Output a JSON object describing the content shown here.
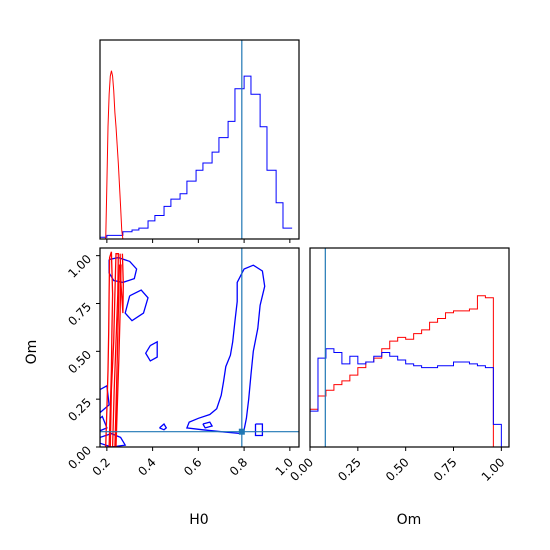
{
  "colors": {
    "blue": "#0000ff",
    "red": "#ff0000",
    "truth": "#1f77b4",
    "frame": "#000000"
  },
  "chart_data": {
    "type": "corner",
    "parameters": [
      "H0",
      "Om"
    ],
    "truths": {
      "H0": 0.79,
      "Om": 0.08
    },
    "axes": {
      "H0": {
        "range": [
          0.17,
          1.04
        ],
        "ticks": [
          0.2,
          0.4,
          0.6,
          0.8,
          1.0
        ],
        "tick_labels": [
          "0.2",
          "0.4",
          "0.6",
          "0.8",
          "1.0"
        ],
        "label": "H0"
      },
      "Om": {
        "range": [
          0.0,
          1.04
        ],
        "ticks": [
          0.0,
          0.25,
          0.5,
          0.75,
          1.0
        ],
        "tick_labels": [
          "0.00",
          "0.25",
          "0.50",
          "0.75",
          "1.00"
        ],
        "label": "Om"
      }
    },
    "hist_H0": {
      "blue": {
        "bins": [
          0.17,
          0.2,
          0.24,
          0.27,
          0.31,
          0.34,
          0.38,
          0.41,
          0.45,
          0.48,
          0.52,
          0.55,
          0.59,
          0.62,
          0.66,
          0.69,
          0.73,
          0.76,
          0.8,
          0.83,
          0.87,
          0.9,
          0.94,
          0.97,
          1.01
        ],
        "counts": [
          0.01,
          0.02,
          0.02,
          0.04,
          0.05,
          0.06,
          0.1,
          0.13,
          0.18,
          0.22,
          0.25,
          0.32,
          0.38,
          0.42,
          0.48,
          0.56,
          0.65,
          0.83,
          0.9,
          0.8,
          0.62,
          0.38,
          0.2,
          0.06
        ]
      },
      "red": {
        "x": [
          0.195,
          0.2,
          0.205,
          0.21,
          0.215,
          0.22,
          0.225,
          0.23,
          0.235,
          0.24,
          0.245,
          0.25,
          0.255,
          0.26,
          0.265,
          0.27
        ],
        "y": [
          0.0,
          0.3,
          0.62,
          0.8,
          0.9,
          0.93,
          0.9,
          0.82,
          0.7,
          0.62,
          0.52,
          0.42,
          0.3,
          0.18,
          0.05,
          0.0
        ]
      }
    },
    "hist_Om": {
      "bins": [
        0.0,
        0.0417,
        0.0833,
        0.125,
        0.1667,
        0.2083,
        0.25,
        0.2917,
        0.3333,
        0.375,
        0.4167,
        0.4583,
        0.5,
        0.5417,
        0.5833,
        0.625,
        0.6667,
        0.7083,
        0.75,
        0.7917,
        0.8333,
        0.875,
        0.9167,
        0.9583,
        1.0
      ],
      "blue": [
        0.19,
        0.47,
        0.52,
        0.5,
        0.44,
        0.48,
        0.44,
        0.45,
        0.48,
        0.5,
        0.48,
        0.46,
        0.44,
        0.43,
        0.42,
        0.42,
        0.43,
        0.43,
        0.45,
        0.45,
        0.44,
        0.43,
        0.42,
        0.12
      ],
      "red": [
        0.2,
        0.27,
        0.3,
        0.33,
        0.35,
        0.38,
        0.42,
        0.45,
        0.47,
        0.52,
        0.56,
        0.58,
        0.57,
        0.6,
        0.62,
        0.66,
        0.68,
        0.71,
        0.72,
        0.72,
        0.73,
        0.8,
        0.79,
        0.0
      ]
    },
    "contours_blue": [
      [
        [
          0.79,
          0.07
        ],
        [
          0.8,
          0.09
        ],
        [
          0.81,
          0.15
        ],
        [
          0.82,
          0.25
        ],
        [
          0.83,
          0.38
        ],
        [
          0.84,
          0.5
        ],
        [
          0.86,
          0.62
        ],
        [
          0.87,
          0.74
        ],
        [
          0.89,
          0.84
        ],
        [
          0.88,
          0.92
        ],
        [
          0.84,
          0.95
        ],
        [
          0.8,
          0.93
        ],
        [
          0.77,
          0.86
        ],
        [
          0.77,
          0.76
        ],
        [
          0.76,
          0.66
        ],
        [
          0.75,
          0.55
        ],
        [
          0.74,
          0.48
        ],
        [
          0.72,
          0.42
        ],
        [
          0.71,
          0.34
        ],
        [
          0.7,
          0.27
        ],
        [
          0.68,
          0.2
        ],
        [
          0.65,
          0.17
        ],
        [
          0.6,
          0.15
        ],
        [
          0.56,
          0.13
        ],
        [
          0.55,
          0.1
        ],
        [
          0.62,
          0.09
        ],
        [
          0.7,
          0.08
        ],
        [
          0.79,
          0.07
        ]
      ],
      [
        [
          0.21,
          0.98
        ],
        [
          0.25,
          0.99
        ],
        [
          0.3,
          0.97
        ],
        [
          0.33,
          0.93
        ],
        [
          0.32,
          0.88
        ],
        [
          0.27,
          0.86
        ],
        [
          0.23,
          0.87
        ],
        [
          0.21,
          0.91
        ],
        [
          0.21,
          0.98
        ]
      ],
      [
        [
          0.3,
          0.79
        ],
        [
          0.35,
          0.82
        ],
        [
          0.38,
          0.78
        ],
        [
          0.36,
          0.7
        ],
        [
          0.31,
          0.66
        ],
        [
          0.28,
          0.7
        ],
        [
          0.3,
          0.79
        ]
      ],
      [
        [
          0.17,
          0.05
        ],
        [
          0.22,
          0.07
        ],
        [
          0.26,
          0.05
        ],
        [
          0.28,
          0.01
        ],
        [
          0.22,
          0.0
        ],
        [
          0.17,
          0.02
        ],
        [
          0.17,
          0.05
        ]
      ],
      [
        [
          0.17,
          0.3
        ],
        [
          0.2,
          0.32
        ],
        [
          0.21,
          0.22
        ],
        [
          0.17,
          0.18
        ],
        [
          0.17,
          0.3
        ]
      ],
      [
        [
          0.39,
          0.53
        ],
        [
          0.42,
          0.55
        ],
        [
          0.42,
          0.47
        ],
        [
          0.39,
          0.45
        ],
        [
          0.37,
          0.49
        ],
        [
          0.39,
          0.53
        ]
      ],
      [
        [
          0.43,
          0.1
        ],
        [
          0.45,
          0.12
        ],
        [
          0.46,
          0.1
        ],
        [
          0.45,
          0.09
        ],
        [
          0.43,
          0.1
        ]
      ],
      [
        [
          0.62,
          0.12
        ],
        [
          0.65,
          0.13
        ],
        [
          0.66,
          0.11
        ],
        [
          0.63,
          0.1
        ],
        [
          0.62,
          0.12
        ]
      ],
      [
        [
          0.85,
          0.12
        ],
        [
          0.88,
          0.12
        ],
        [
          0.88,
          0.06
        ],
        [
          0.85,
          0.06
        ],
        [
          0.85,
          0.12
        ]
      ],
      [
        [
          0.16,
          0.14
        ],
        [
          0.18,
          0.16
        ],
        [
          0.2,
          0.1
        ],
        [
          0.16,
          0.08
        ],
        [
          0.16,
          0.14
        ]
      ]
    ],
    "contours_red": [
      [
        [
          0.195,
          0.0
        ],
        [
          0.2,
          0.2
        ],
        [
          0.205,
          0.4
        ],
        [
          0.208,
          0.6
        ],
        [
          0.21,
          0.8
        ],
        [
          0.212,
          0.99
        ],
        [
          0.22,
          1.02
        ],
        [
          0.225,
          0.8
        ],
        [
          0.222,
          0.6
        ],
        [
          0.22,
          0.4
        ],
        [
          0.215,
          0.2
        ],
        [
          0.21,
          0.0
        ]
      ],
      [
        [
          0.215,
          0.0
        ],
        [
          0.22,
          0.3
        ],
        [
          0.23,
          0.55
        ],
        [
          0.235,
          0.8
        ],
        [
          0.24,
          1.01
        ],
        [
          0.25,
          1.01
        ],
        [
          0.248,
          0.8
        ],
        [
          0.24,
          0.55
        ],
        [
          0.232,
          0.3
        ],
        [
          0.225,
          0.0
        ]
      ],
      [
        [
          0.235,
          0.0
        ],
        [
          0.24,
          0.2
        ],
        [
          0.245,
          0.45
        ],
        [
          0.25,
          0.7
        ],
        [
          0.255,
          0.95
        ],
        [
          0.262,
          0.95
        ],
        [
          0.258,
          0.7
        ],
        [
          0.252,
          0.45
        ],
        [
          0.245,
          0.2
        ],
        [
          0.24,
          0.0
        ]
      ],
      [
        [
          0.258,
          1.01
        ],
        [
          0.262,
          0.85
        ],
        [
          0.27,
          0.7
        ],
        [
          0.272,
          0.85
        ],
        [
          0.268,
          1.01
        ]
      ]
    ]
  }
}
